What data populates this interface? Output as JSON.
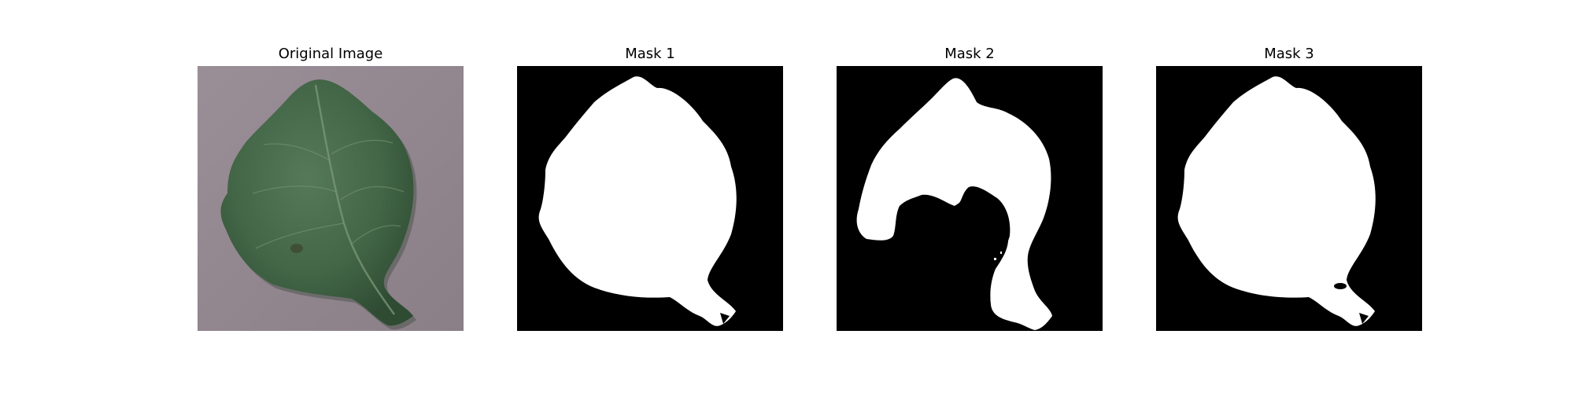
{
  "figure": {
    "panels": [
      {
        "title": "Original Image",
        "kind": "photo"
      },
      {
        "title": "Mask 1",
        "kind": "mask"
      },
      {
        "title": "Mask 2",
        "kind": "mask"
      },
      {
        "title": "Mask 3",
        "kind": "mask"
      }
    ]
  },
  "colors": {
    "background_photo": "#938890",
    "leaf_dark": "#3a5a3e",
    "leaf_mid": "#4d7052",
    "leaf_vein": "#7b9a78",
    "mask_background": "#000000",
    "mask_foreground": "#ffffff"
  }
}
